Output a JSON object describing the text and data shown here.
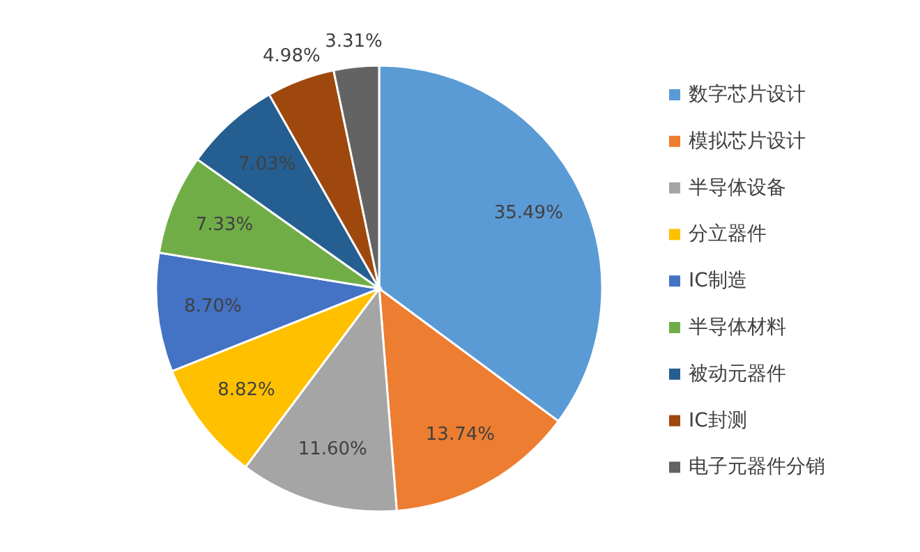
{
  "chart_data": {
    "type": "pie",
    "categories": [
      "数字芯片设计",
      "模拟芯片设计",
      "半导体设备",
      "分立器件",
      "IC制造",
      "半导体材料",
      "被动元器件",
      "IC封测",
      "电子元器件分销"
    ],
    "values": [
      35.49,
      13.74,
      11.6,
      8.82,
      8.7,
      7.33,
      7.03,
      4.98,
      3.31
    ],
    "colors": [
      "#5b9bd5",
      "#ed7d31",
      "#a5a5a5",
      "#ffc000",
      "#4472c4",
      "#70ad47",
      "#255e91",
      "#9e480e",
      "#636363"
    ],
    "value_labels": [
      "35.49%",
      "13.74%",
      "11.60%",
      "8.82%",
      "8.70%",
      "7.33%",
      "7.03%",
      "4.98%",
      "3.31%"
    ],
    "legend": "right"
  }
}
